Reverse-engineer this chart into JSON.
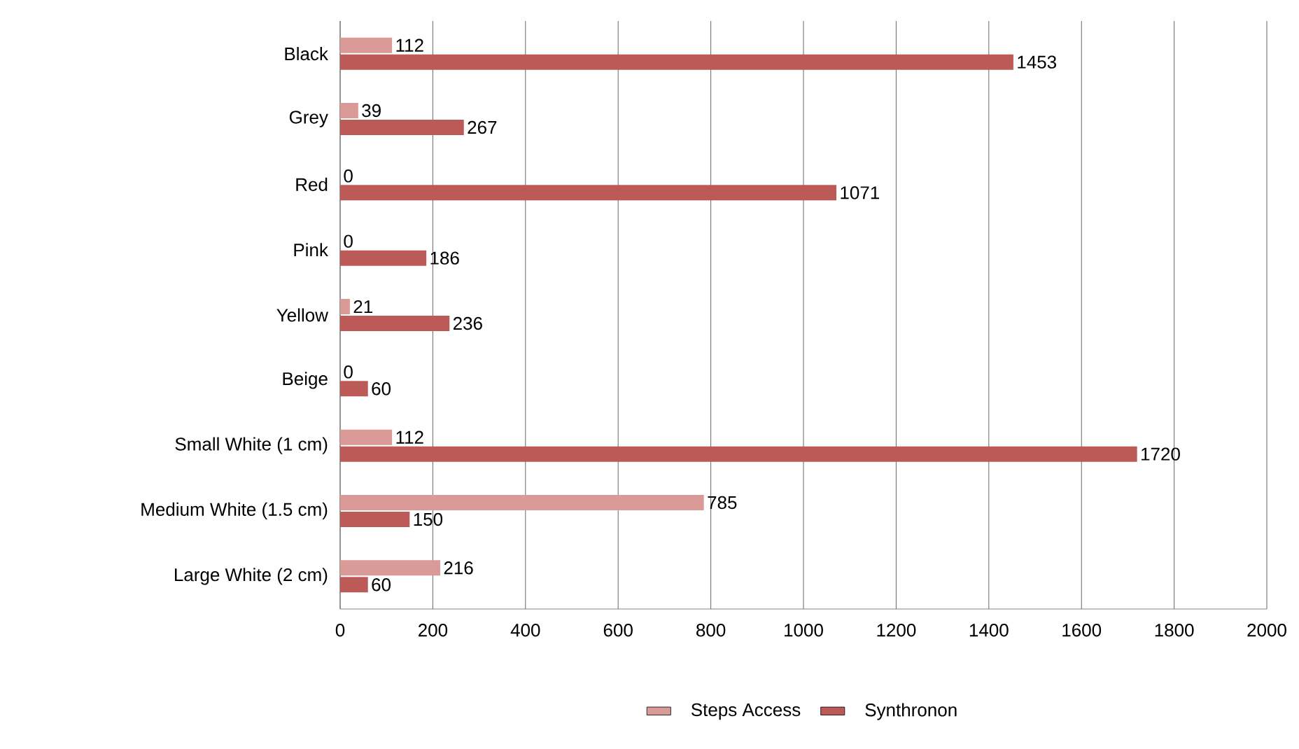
{
  "chart_data": {
    "type": "bar",
    "orientation": "horizontal",
    "categories": [
      "Black",
      "Grey",
      "Red",
      "Pink",
      "Yellow",
      "Beige",
      "Small White (1 cm)",
      "Medium White (1.5 cm)",
      "Large White (2 cm)"
    ],
    "series": [
      {
        "name": "Steps Access",
        "color": "#d99a98",
        "values": [
          112,
          39,
          0,
          0,
          21,
          0,
          112,
          785,
          216
        ]
      },
      {
        "name": "Synthronon",
        "color": "#bc5a58",
        "values": [
          1453,
          267,
          1071,
          186,
          236,
          60,
          1720,
          150,
          60
        ]
      }
    ],
    "xlim": [
      0,
      2000
    ],
    "xticks": [
      0,
      200,
      400,
      600,
      800,
      1000,
      1200,
      1400,
      1600,
      1800,
      2000
    ],
    "grid": "x",
    "legend": "bottom",
    "data_labels": true
  }
}
